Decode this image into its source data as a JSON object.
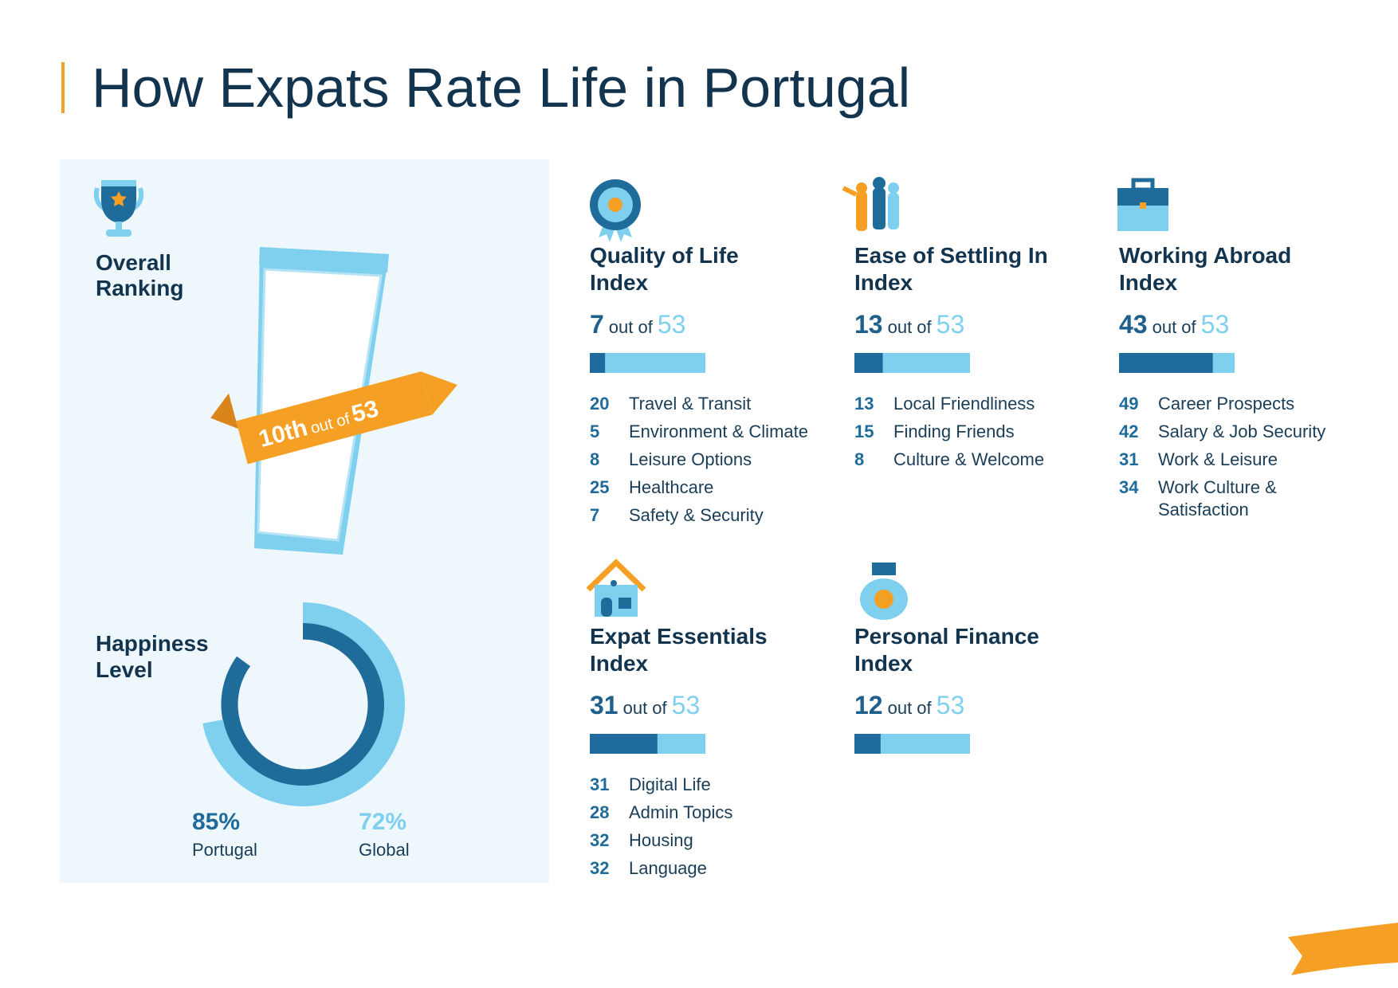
{
  "header": {
    "title": "How Expats Rate Life in Portugal"
  },
  "overall": {
    "label": [
      "Overall",
      "Ranking"
    ],
    "rank": "10th",
    "out_of": "out of",
    "total": 53
  },
  "happiness": {
    "label": [
      "Happiness",
      "Level"
    ],
    "items": [
      {
        "value": 85,
        "value_label": "85%",
        "name": "Portugal",
        "color": "#1f6b9a"
      },
      {
        "value": 72,
        "value_label": "72%",
        "name": "Global",
        "color": "#7fd0ef"
      }
    ]
  },
  "indices": [
    {
      "title": [
        "Quality of Life",
        "Index"
      ],
      "rank": 7,
      "out_of": "out of",
      "total": 53,
      "subs": [
        {
          "rank": 20,
          "name": [
            "Travel & Transit"
          ]
        },
        {
          "rank": 5,
          "name": [
            "Environment & Climate"
          ]
        },
        {
          "rank": 8,
          "name": [
            "Leisure Options"
          ]
        },
        {
          "rank": 25,
          "name": [
            "Healthcare"
          ]
        },
        {
          "rank": 7,
          "name": [
            "Safety & Security"
          ]
        }
      ]
    },
    {
      "title": [
        "Ease of Settling In",
        "Index"
      ],
      "rank": 13,
      "out_of": "out of",
      "total": 53,
      "subs": [
        {
          "rank": 13,
          "name": [
            "Local Friendliness"
          ]
        },
        {
          "rank": 15,
          "name": [
            "Finding Friends"
          ]
        },
        {
          "rank": 8,
          "name": [
            "Culture & Welcome"
          ]
        }
      ]
    },
    {
      "title": [
        "Working Abroad",
        "Index"
      ],
      "rank": 43,
      "out_of": "out of",
      "total": 53,
      "subs": [
        {
          "rank": 49,
          "name": [
            "Career Prospects"
          ]
        },
        {
          "rank": 42,
          "name": [
            "Salary & Job Security"
          ]
        },
        {
          "rank": 31,
          "name": [
            "Work & Leisure"
          ]
        },
        {
          "rank": 34,
          "name": [
            "Work Culture &",
            "Satisfaction"
          ]
        }
      ]
    },
    {
      "title": [
        "Expat Essentials",
        "Index"
      ],
      "rank": 31,
      "out_of": "out of",
      "total": 53,
      "subs": [
        {
          "rank": 31,
          "name": [
            "Digital Life"
          ]
        },
        {
          "rank": 28,
          "name": [
            "Admin Topics"
          ]
        },
        {
          "rank": 32,
          "name": [
            "Housing"
          ]
        },
        {
          "rank": 32,
          "name": [
            "Language"
          ]
        }
      ]
    },
    {
      "title": [
        "Personal Finance",
        "Index"
      ],
      "rank": 12,
      "out_of": "out of",
      "total": 53,
      "subs": []
    }
  ]
}
